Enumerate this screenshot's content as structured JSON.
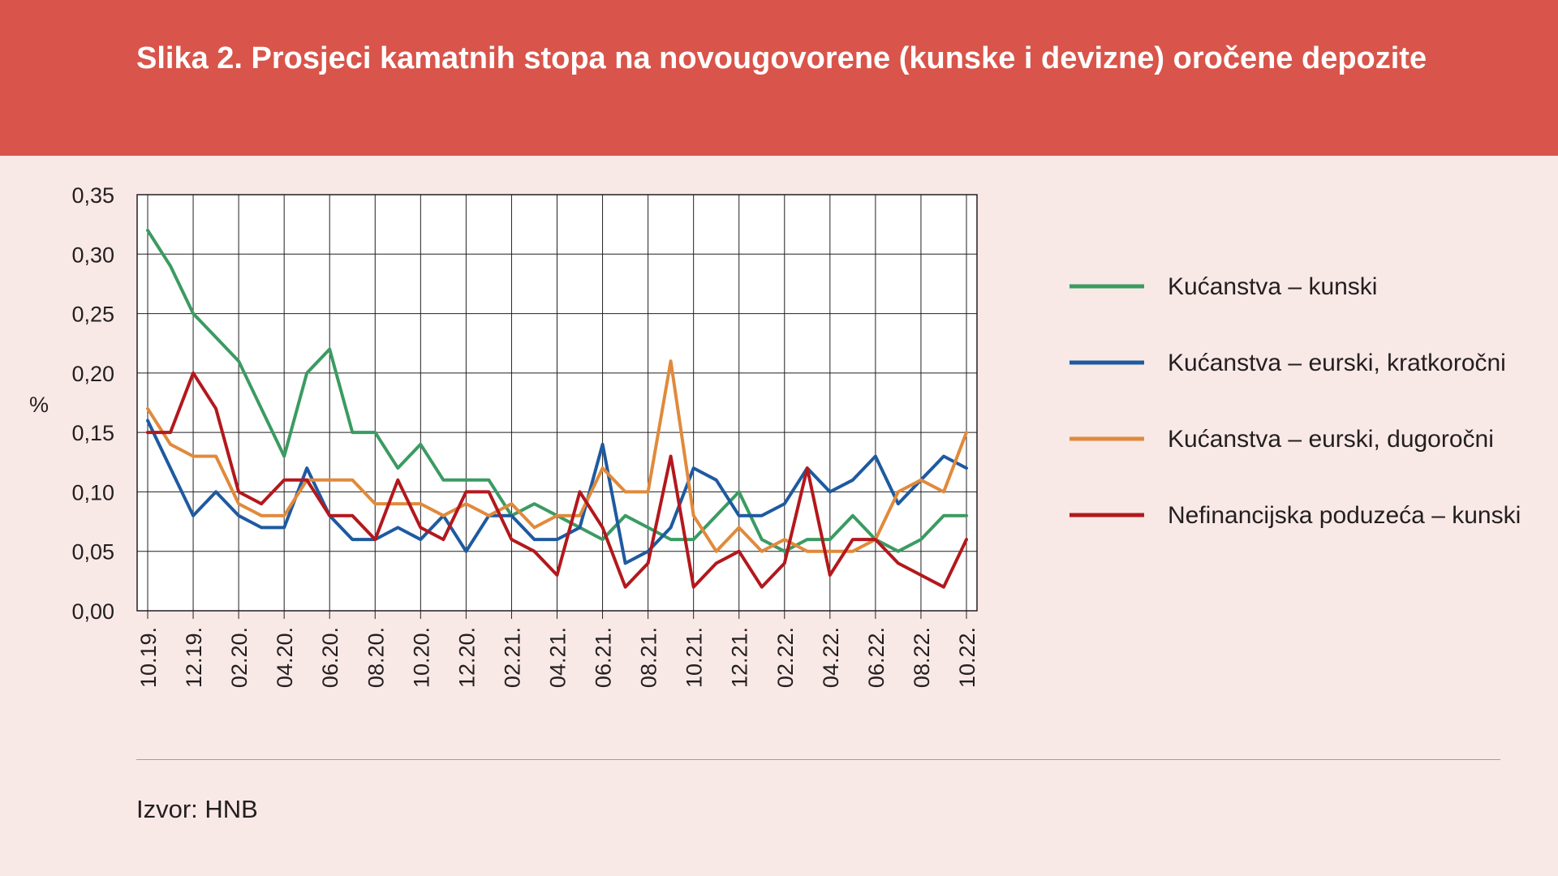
{
  "header": {
    "title": "Slika 2. Prosjeci kamatnih stopa na novougovorene (kunske i devizne) oročene depozite"
  },
  "source": "Izvor: HNB",
  "colors": {
    "header_bg": "#d9544a",
    "page_bg": "#f9e9e6",
    "plot_bg": "#ffffff"
  },
  "chart_data": {
    "type": "line",
    "title": "Slika 2. Prosjeci kamatnih stopa na novougovorene (kunske i devizne) oročene depozite",
    "ylabel": "%",
    "xlabel": "",
    "ylim": [
      0,
      0.35
    ],
    "yticks": [
      "0,00",
      "0,05",
      "0,10",
      "0,15",
      "0,20",
      "0,25",
      "0,30",
      "0,35"
    ],
    "grid": true,
    "legend_position": "right",
    "x": [
      "10.19.",
      "11.19.",
      "12.19.",
      "01.20.",
      "02.20.",
      "03.20.",
      "04.20.",
      "05.20.",
      "06.20.",
      "07.20.",
      "08.20.",
      "09.20.",
      "10.20.",
      "11.20.",
      "12.20.",
      "01.21.",
      "02.21.",
      "03.21.",
      "04.21.",
      "05.21.",
      "06.21.",
      "07.21.",
      "08.21.",
      "09.21.",
      "10.21.",
      "11.21.",
      "12.21.",
      "01.22.",
      "02.22.",
      "03.22.",
      "04.22.",
      "05.22.",
      "06.22.",
      "07.22.",
      "08.22.",
      "09.22.",
      "10.22."
    ],
    "x_tick_labels": [
      "10.19.",
      "12.19.",
      "02.20.",
      "04.20.",
      "06.20.",
      "08.20.",
      "10.20.",
      "12.20.",
      "02.21.",
      "04.21.",
      "06.21.",
      "08.21.",
      "10.21.",
      "12.21.",
      "02.22.",
      "04.22.",
      "06.22.",
      "08.22.",
      "10.22."
    ],
    "series": [
      {
        "name": "Kućanstva – kunski",
        "color": "#3b9b62",
        "values": [
          0.32,
          0.29,
          0.25,
          0.23,
          0.21,
          0.17,
          0.13,
          0.2,
          0.22,
          0.15,
          0.15,
          0.12,
          0.14,
          0.11,
          0.11,
          0.11,
          0.08,
          0.09,
          0.08,
          0.07,
          0.06,
          0.08,
          0.07,
          0.06,
          0.06,
          0.08,
          0.1,
          0.06,
          0.05,
          0.06,
          0.06,
          0.08,
          0.06,
          0.05,
          0.06,
          0.08,
          0.08
        ]
      },
      {
        "name": "Kućanstva – eurski, kratkoročni",
        "color": "#1e5aa0",
        "values": [
          0.16,
          0.12,
          0.08,
          0.1,
          0.08,
          0.07,
          0.07,
          0.12,
          0.08,
          0.06,
          0.06,
          0.07,
          0.06,
          0.08,
          0.05,
          0.08,
          0.08,
          0.06,
          0.06,
          0.07,
          0.14,
          0.04,
          0.05,
          0.07,
          0.12,
          0.11,
          0.08,
          0.08,
          0.09,
          0.12,
          0.1,
          0.11,
          0.13,
          0.09,
          0.11,
          0.13,
          0.12
        ]
      },
      {
        "name": "Kućanstva – eurski, dugoročni",
        "color": "#e08a3c",
        "values": [
          0.17,
          0.14,
          0.13,
          0.13,
          0.09,
          0.08,
          0.08,
          0.11,
          0.11,
          0.11,
          0.09,
          0.09,
          0.09,
          0.08,
          0.09,
          0.08,
          0.09,
          0.07,
          0.08,
          0.08,
          0.12,
          0.1,
          0.1,
          0.21,
          0.08,
          0.05,
          0.07,
          0.05,
          0.06,
          0.05,
          0.05,
          0.05,
          0.06,
          0.1,
          0.11,
          0.1,
          0.15
        ]
      },
      {
        "name": "Nefinancijska poduzeća – kunski",
        "color": "#b3181d",
        "values": [
          0.15,
          0.15,
          0.2,
          0.17,
          0.1,
          0.09,
          0.11,
          0.11,
          0.08,
          0.08,
          0.06,
          0.11,
          0.07,
          0.06,
          0.1,
          0.1,
          0.06,
          0.05,
          0.03,
          0.1,
          0.07,
          0.02,
          0.04,
          0.13,
          0.02,
          0.04,
          0.05,
          0.02,
          0.04,
          0.12,
          0.03,
          0.06,
          0.06,
          0.04,
          0.03,
          0.02,
          0.06
        ]
      }
    ]
  }
}
